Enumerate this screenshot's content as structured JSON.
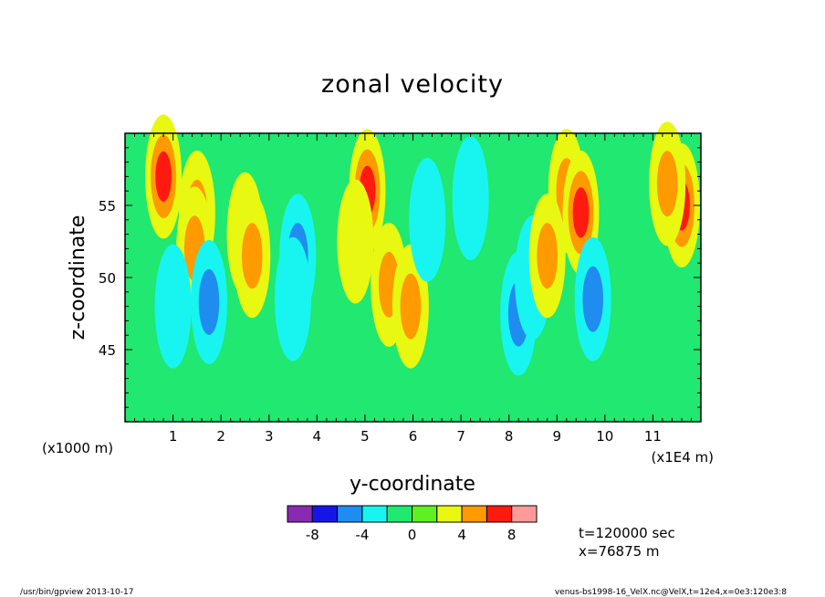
{
  "chart_data": {
    "type": "heatmap",
    "title": "zonal velocity",
    "xlabel": "y-coordinate",
    "ylabel": "z-coordinate",
    "x_scale_note": "(x1E4 m)",
    "y_scale_note": "(x1000 m)",
    "xlim": [
      0,
      12
    ],
    "ylim": [
      40,
      60
    ],
    "x_ticks": [
      1,
      2,
      3,
      4,
      5,
      6,
      7,
      8,
      9,
      10,
      11
    ],
    "x_tick_labels": [
      "1",
      "2",
      "3",
      "4",
      "5",
      "6",
      "7",
      "8",
      "9",
      "10",
      "11"
    ],
    "y_ticks": [
      45,
      50,
      55
    ],
    "y_tick_labels": [
      "45",
      "50",
      "55"
    ],
    "colorbar": {
      "levels": [
        -10,
        -8,
        -6,
        -4,
        -2,
        0,
        2,
        4,
        6,
        8,
        10
      ],
      "colors": [
        "#8a2ab0",
        "#1515ea",
        "#1f8cf0",
        "#18f5f0",
        "#20e870",
        "#60f020",
        "#e8f810",
        "#ff9a00",
        "#ff1a10",
        "#ff9a9a"
      ],
      "tick_values": [
        -8,
        -4,
        0,
        4,
        8
      ],
      "tick_labels": [
        "-8",
        "-4",
        "0",
        "4",
        "8"
      ]
    },
    "features": [
      {
        "y": 0.8,
        "z": 57.0,
        "value": 6
      },
      {
        "y": 1.5,
        "z": 54.5,
        "value": 4
      },
      {
        "y": 1.45,
        "z": 52.0,
        "value": 5
      },
      {
        "y": 1.75,
        "z": 48.3,
        "value": -5
      },
      {
        "y": 1.0,
        "z": 48.0,
        "value": -3
      },
      {
        "y": 2.5,
        "z": 53.0,
        "value": 3
      },
      {
        "y": 2.65,
        "z": 51.5,
        "value": 5
      },
      {
        "y": 3.6,
        "z": 51.5,
        "value": -5
      },
      {
        "y": 3.5,
        "z": 48.5,
        "value": -3
      },
      {
        "y": 5.05,
        "z": 56.0,
        "value": 6
      },
      {
        "y": 4.8,
        "z": 52.5,
        "value": 3
      },
      {
        "y": 5.5,
        "z": 49.5,
        "value": 5
      },
      {
        "y": 5.95,
        "z": 48.0,
        "value": 5
      },
      {
        "y": 6.3,
        "z": 54.0,
        "value": -3
      },
      {
        "y": 7.2,
        "z": 55.5,
        "value": -3
      },
      {
        "y": 8.2,
        "z": 47.5,
        "value": -5
      },
      {
        "y": 8.5,
        "z": 50.0,
        "value": -3
      },
      {
        "y": 9.2,
        "z": 56.0,
        "value": 4
      },
      {
        "y": 9.5,
        "z": 54.5,
        "value": 6
      },
      {
        "y": 9.75,
        "z": 48.5,
        "value": -5
      },
      {
        "y": 8.8,
        "z": 51.5,
        "value": 4
      },
      {
        "y": 11.6,
        "z": 55.0,
        "value": 6
      },
      {
        "y": 11.3,
        "z": 56.5,
        "value": 4
      }
    ],
    "annotations": [
      "t=120000 sec",
      "x=76875 m"
    ]
  },
  "footer": {
    "left": "/usr/bin/gpview   2013-10-17",
    "right": "venus-bs1998-16_VelX.nc@VelX,t=12e4,x=0e3:120e3:8"
  }
}
